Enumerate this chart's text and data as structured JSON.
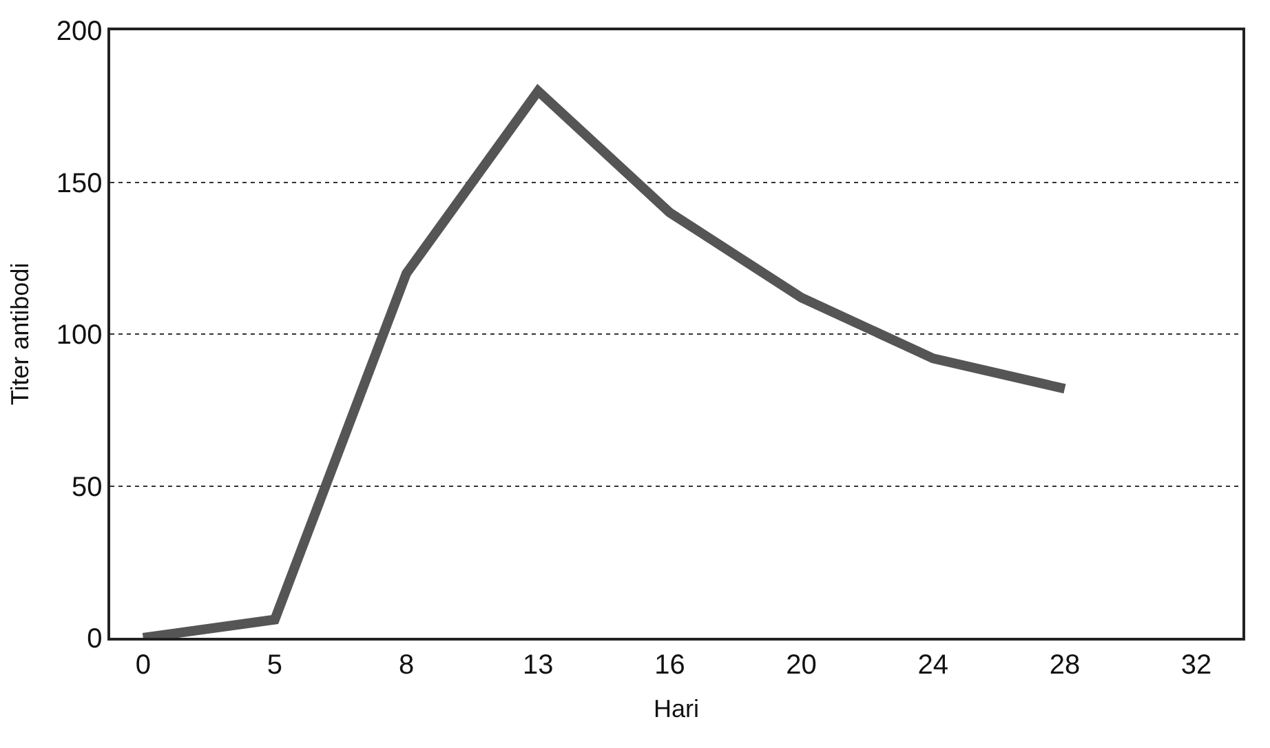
{
  "chart_data": {
    "type": "line",
    "xlabel": "Hari",
    "ylabel": "Titer antibodi",
    "categories": [
      "0",
      "5",
      "8",
      "13",
      "16",
      "20",
      "24",
      "28",
      "32"
    ],
    "series": [
      {
        "color": "#555555",
        "values": [
          0,
          6,
          120,
          180,
          140,
          112,
          92,
          82,
          null
        ]
      }
    ],
    "ylim": [
      0,
      200
    ],
    "yticks": [
      0,
      50,
      100,
      150,
      200
    ],
    "grid": "y",
    "legend": false,
    "marker": "none",
    "line_style": "solid"
  }
}
